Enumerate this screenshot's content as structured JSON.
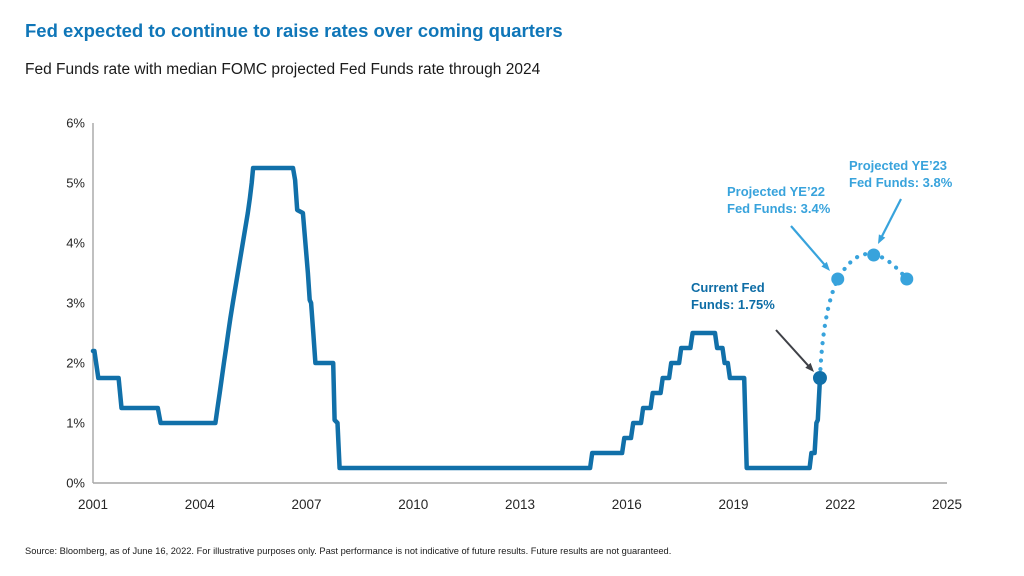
{
  "header": {
    "title": "Fed expected to continue to raise rates over coming quarters",
    "subtitle": "Fed Funds rate with median FOMC projected Fed Funds rate through 2024"
  },
  "footer": {
    "source": "Source: Bloomberg, as of June 16, 2022. For illustrative purposes only. Past performance is not indicative of future results. Future results are not guaranteed."
  },
  "colors": {
    "title_blue": "#0F76B8",
    "line_blue": "#1170A9",
    "projection_blue": "#38A3DC",
    "current_label_blue": "#0E6DA6",
    "arrow_gray": "#3F4147",
    "axis_gray": "#A6A6A6",
    "tick_text": "#262626"
  },
  "chart_data": {
    "type": "line",
    "xlabel": "",
    "ylabel": "",
    "xlim": [
      2001,
      2025
    ],
    "ylim": [
      0,
      6
    ],
    "grid": false,
    "x_ticks": [
      2001,
      2004,
      2007,
      2010,
      2013,
      2016,
      2019,
      2022,
      2025
    ],
    "y_ticks": [
      {
        "value": 0,
        "label": "0%"
      },
      {
        "value": 1,
        "label": "1%"
      },
      {
        "value": 2,
        "label": "2%"
      },
      {
        "value": 3,
        "label": "3%"
      },
      {
        "value": 4,
        "label": "4%"
      },
      {
        "value": 5,
        "label": "5%"
      },
      {
        "value": 6,
        "label": "6%"
      }
    ],
    "series": [
      {
        "name": "Fed Funds rate",
        "style": "solid",
        "color": "#1170A9",
        "points": [
          [
            2001.0,
            2.2
          ],
          [
            2001.04,
            2.2
          ],
          [
            2001.15,
            1.75
          ],
          [
            2001.72,
            1.75
          ],
          [
            2001.8,
            1.25
          ],
          [
            2002.82,
            1.25
          ],
          [
            2002.9,
            1.0
          ],
          [
            2004.44,
            1.0
          ],
          [
            2004.5,
            1.25
          ],
          [
            2004.56,
            1.5
          ],
          [
            2004.62,
            1.75
          ],
          [
            2004.68,
            2.0
          ],
          [
            2004.74,
            2.25
          ],
          [
            2004.8,
            2.5
          ],
          [
            2004.86,
            2.75
          ],
          [
            2004.93,
            3.0
          ],
          [
            2005.0,
            3.25
          ],
          [
            2005.07,
            3.5
          ],
          [
            2005.14,
            3.75
          ],
          [
            2005.21,
            4.0
          ],
          [
            2005.28,
            4.25
          ],
          [
            2005.35,
            4.5
          ],
          [
            2005.41,
            4.75
          ],
          [
            2005.46,
            5.0
          ],
          [
            2005.5,
            5.25
          ],
          [
            2006.62,
            5.25
          ],
          [
            2006.68,
            5.05
          ],
          [
            2006.74,
            4.55
          ],
          [
            2006.9,
            4.5
          ],
          [
            2006.97,
            4.0
          ],
          [
            2007.04,
            3.5
          ],
          [
            2007.09,
            3.05
          ],
          [
            2007.13,
            3.0
          ],
          [
            2007.19,
            2.5
          ],
          [
            2007.25,
            2.0
          ],
          [
            2007.75,
            2.0
          ],
          [
            2007.79,
            1.05
          ],
          [
            2007.87,
            1.0
          ],
          [
            2007.93,
            0.25
          ],
          [
            2014.97,
            0.25
          ],
          [
            2015.03,
            0.5
          ],
          [
            2015.87,
            0.5
          ],
          [
            2015.93,
            0.75
          ],
          [
            2016.12,
            0.75
          ],
          [
            2016.18,
            1.0
          ],
          [
            2016.4,
            1.0
          ],
          [
            2016.46,
            1.25
          ],
          [
            2016.67,
            1.25
          ],
          [
            2016.73,
            1.5
          ],
          [
            2016.95,
            1.5
          ],
          [
            2017.01,
            1.75
          ],
          [
            2017.19,
            1.75
          ],
          [
            2017.25,
            2.0
          ],
          [
            2017.47,
            2.0
          ],
          [
            2017.53,
            2.25
          ],
          [
            2017.79,
            2.25
          ],
          [
            2017.85,
            2.5
          ],
          [
            2018.48,
            2.5
          ],
          [
            2018.54,
            2.25
          ],
          [
            2018.69,
            2.25
          ],
          [
            2018.75,
            2.0
          ],
          [
            2018.84,
            2.0
          ],
          [
            2018.9,
            1.75
          ],
          [
            2019.3,
            1.75
          ],
          [
            2019.37,
            0.25
          ],
          [
            2021.14,
            0.25
          ],
          [
            2021.19,
            0.5
          ],
          [
            2021.28,
            0.5
          ],
          [
            2021.33,
            1.0
          ],
          [
            2021.37,
            1.05
          ],
          [
            2021.43,
            1.75
          ]
        ]
      },
      {
        "name": "Median FOMC projected Fed Funds rate",
        "style": "dotted",
        "color": "#38A3DC",
        "points": [
          [
            2021.43,
            1.75
          ],
          [
            2021.93,
            3.4
          ],
          [
            2022.94,
            3.8
          ],
          [
            2023.87,
            3.4
          ]
        ]
      }
    ],
    "markers": [
      {
        "id": "current",
        "year": 2021.43,
        "rate": 1.75,
        "color": "#1170A9",
        "radius": 7
      },
      {
        "id": "ye22",
        "year": 2021.93,
        "rate": 3.4,
        "color": "#38A3DC",
        "radius": 6.5
      },
      {
        "id": "ye23",
        "year": 2022.94,
        "rate": 3.8,
        "color": "#38A3DC",
        "radius": 6.5
      },
      {
        "id": "ye24",
        "year": 2023.87,
        "rate": 3.4,
        "color": "#38A3DC",
        "radius": 6.5
      }
    ],
    "annotations": {
      "current": {
        "line1": "Current Fed",
        "line2": "Funds: 1.75%"
      },
      "ye22": {
        "line1": "Projected YE’22",
        "line2": "Fed Funds: 3.4%"
      },
      "ye23": {
        "line1": "Projected YE’23",
        "line2": "Fed Funds: 3.8%"
      }
    }
  }
}
